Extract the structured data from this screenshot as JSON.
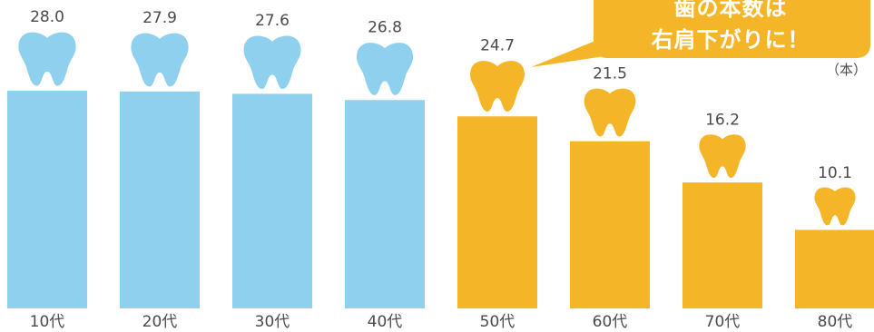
{
  "chart_data": {
    "type": "bar",
    "categories": [
      "10代",
      "20代",
      "30代",
      "40代",
      "50代",
      "60代",
      "70代",
      "80代"
    ],
    "values": [
      28.0,
      27.9,
      27.6,
      26.8,
      24.7,
      21.5,
      16.2,
      10.1
    ],
    "value_labels": [
      "28.0",
      "27.9",
      "27.6",
      "26.8",
      "24.7",
      "21.5",
      "16.2",
      "10.1"
    ],
    "unit": "（本）",
    "ylim": [
      0,
      28.0
    ],
    "grid": false,
    "colors": {
      "young": "#8fd0ef",
      "older": "#f5b528"
    },
    "highlight_from_index": 4,
    "callout": {
      "lines": [
        "歯の本数は",
        "右肩下がりに！"
      ],
      "color": "#f5b528"
    },
    "icons": [
      "tooth-icon"
    ]
  }
}
